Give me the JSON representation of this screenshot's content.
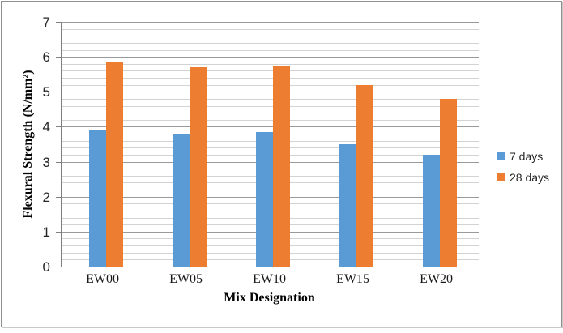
{
  "chart_data": {
    "type": "bar",
    "title": "",
    "categories": [
      "EW00",
      "EW05",
      "EW10",
      "EW15",
      "EW20"
    ],
    "series": [
      {
        "name": "7 days",
        "color": "#5B9BD5",
        "values": [
          3.9,
          3.8,
          3.85,
          3.5,
          3.2
        ]
      },
      {
        "name": "28 days",
        "color": "#ED7D31",
        "values": [
          5.85,
          5.7,
          5.75,
          5.2,
          4.8
        ]
      }
    ],
    "xlabel": "Mix Designation",
    "ylabel": "Flexural Strength (N/mm²)",
    "ylim": [
      0,
      7
    ],
    "y_tick_labels": [
      "0",
      "1",
      "2",
      "3",
      "4",
      "5",
      "6",
      "7"
    ],
    "y_major_step": 1,
    "y_minor_step": 0.2,
    "grid": "horizontal major+minor",
    "legend_position": "right-middle",
    "colors": {
      "grid_major": "#9a9a9a",
      "grid_minor": "#d3d3d3",
      "axis": "#7f7f7f",
      "tick_text": "#262626",
      "frame_border": "#8f8f8f",
      "background": "#ffffff"
    }
  }
}
